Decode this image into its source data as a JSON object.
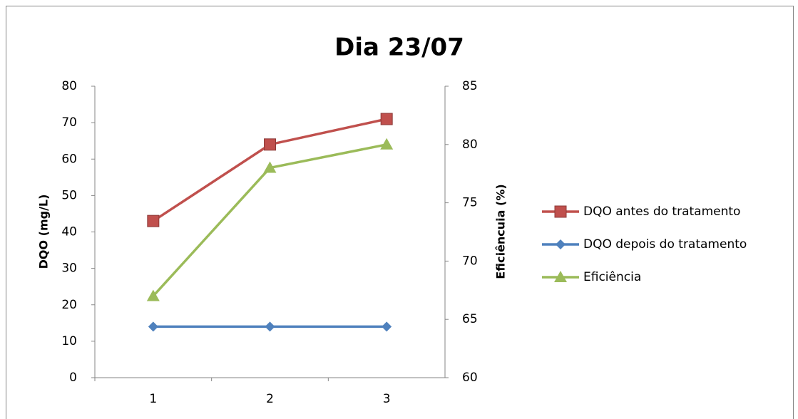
{
  "chart_data": {
    "type": "line",
    "title": "Dia 23/07",
    "y_label": "DQO (mg/L)",
    "y2_label": "Eficiêncuia (%)",
    "categories": [
      "1",
      "2",
      "3"
    ],
    "series": [
      {
        "name": "DQO antes do tratamento",
        "color": "#c0504d",
        "marker": "square",
        "values": [
          43,
          64,
          71
        ]
      },
      {
        "name": "DQO depois do tratamento",
        "color": "#4f81bd",
        "marker": "diamond",
        "values": [
          14,
          14,
          14
        ]
      },
      {
        "name": "Eficiência",
        "color": "#9bbb59",
        "marker": "triangle",
        "axis": "y2",
        "values": [
          67,
          78,
          80
        ]
      }
    ],
    "ylim": [
      0,
      80
    ],
    "yticks": [
      0,
      10,
      20,
      30,
      40,
      50,
      60,
      70,
      80
    ],
    "y2lim": [
      60,
      85
    ],
    "y2ticks": [
      60,
      65,
      70,
      75,
      80,
      85
    ],
    "grid": false,
    "legend": "right"
  }
}
